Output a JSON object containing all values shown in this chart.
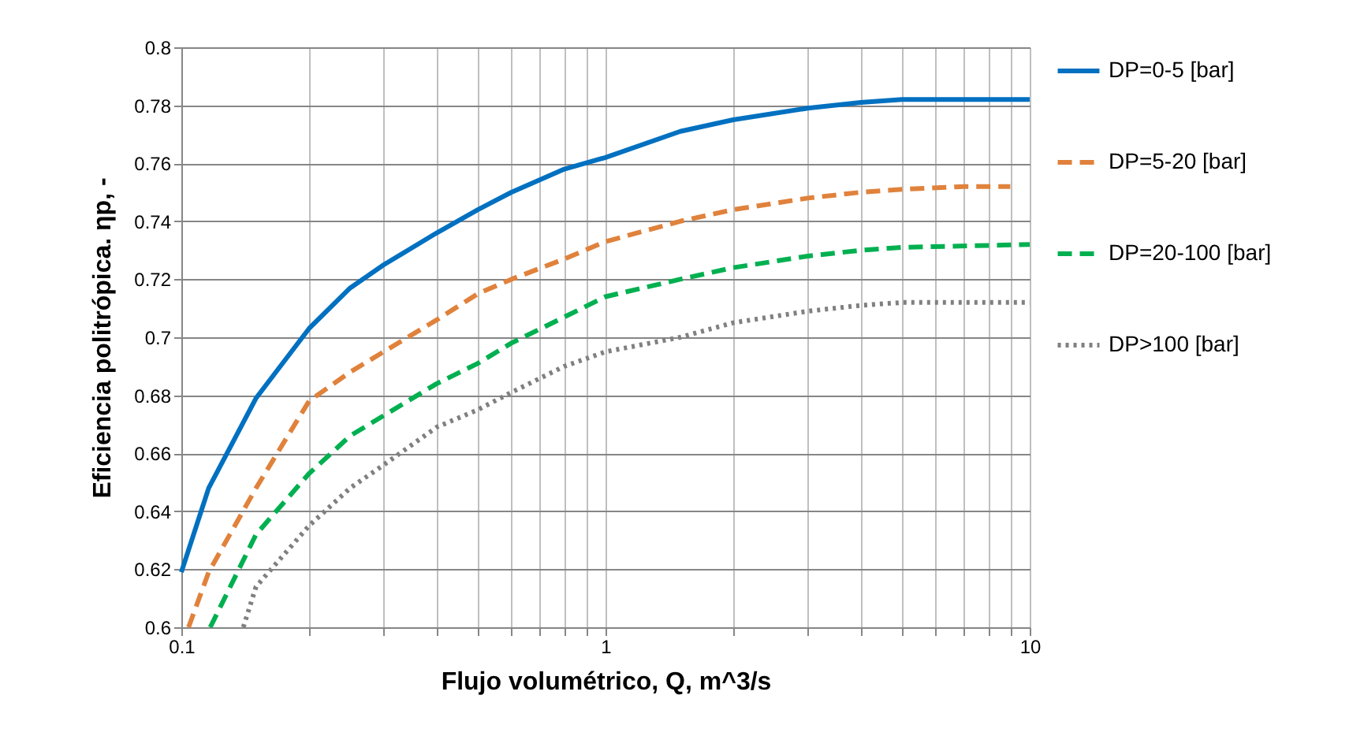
{
  "chart_data": {
    "type": "line",
    "xlabel": "Flujo volumétrico, Q, m^3/s",
    "ylabel": "Eficiencia politrópica. ηp, -",
    "log": "x",
    "grid": true,
    "legend": "right",
    "marker": "none",
    "xlim": [
      0.1,
      10
    ],
    "xticks": [
      0.1,
      {
        "value": 0.2,
        "label": null
      },
      {
        "value": 0.3,
        "label": null
      },
      {
        "value": 0.4,
        "label": null
      },
      {
        "value": 0.5,
        "label": null
      },
      {
        "value": 0.6,
        "label": null
      },
      {
        "value": 0.7,
        "label": null
      },
      {
        "value": 0.8,
        "label": null
      },
      {
        "value": 0.9,
        "label": null
      },
      1,
      {
        "value": 2,
        "label": null
      },
      {
        "value": 3,
        "label": null
      },
      {
        "value": 4,
        "label": null
      },
      {
        "value": 5,
        "label": null
      },
      {
        "value": 6,
        "label": null
      },
      {
        "value": 7,
        "label": null
      },
      {
        "value": 8,
        "label": null
      },
      {
        "value": 9,
        "label": null
      },
      10
    ],
    "ylim": [
      0.6,
      0.8
    ],
    "yticks": [
      0.6,
      0.62,
      0.64,
      0.66,
      0.68,
      0.7,
      0.72,
      0.74,
      0.76,
      0.78,
      0.8
    ],
    "series": [
      {
        "name": "DP=0-5 [bar]",
        "color": "#0070c0",
        "line_style": "solid",
        "x": [
          0.1,
          0.116,
          0.15,
          0.2,
          0.25,
          0.3,
          0.4,
          0.5,
          0.6,
          0.8,
          1,
          1.5,
          2,
          3,
          4,
          5,
          7,
          10
        ],
        "values": [
          0.619,
          0.648,
          0.679,
          0.703,
          0.717,
          0.725,
          0.736,
          0.744,
          0.75,
          0.758,
          0.762,
          0.771,
          0.775,
          0.779,
          0.781,
          0.782,
          0.782,
          0.782
        ]
      },
      {
        "name": "DP=5-20 [bar]",
        "color": "#e0823c",
        "line_style": "dashed",
        "x": [
          0.104,
          0.116,
          0.15,
          0.2,
          0.25,
          0.3,
          0.4,
          0.5,
          0.6,
          0.8,
          1,
          1.5,
          2,
          3,
          4,
          5,
          7,
          9
        ],
        "values": [
          0.6,
          0.619,
          0.648,
          0.678,
          0.688,
          0.695,
          0.706,
          0.715,
          0.72,
          0.727,
          0.733,
          0.74,
          0.744,
          0.748,
          0.75,
          0.751,
          0.752,
          0.752
        ]
      },
      {
        "name": "DP=20-100 [bar]",
        "color": "#00b050",
        "line_style": "dashed",
        "x": [
          0.117,
          0.15,
          0.2,
          0.25,
          0.3,
          0.4,
          0.5,
          0.6,
          0.8,
          1,
          1.5,
          2,
          3,
          4,
          5,
          10
        ],
        "values": [
          0.6,
          0.632,
          0.653,
          0.666,
          0.673,
          0.684,
          0.691,
          0.698,
          0.707,
          0.714,
          0.72,
          0.724,
          0.728,
          0.73,
          0.731,
          0.732
        ]
      },
      {
        "name": "DP>100 [bar]",
        "color": "#808080",
        "line_style": "dotted",
        "x": [
          0.14,
          0.15,
          0.2,
          0.25,
          0.3,
          0.4,
          0.5,
          0.6,
          0.8,
          1,
          1.5,
          2,
          3,
          4,
          5,
          10
        ],
        "values": [
          0.6,
          0.614,
          0.635,
          0.648,
          0.656,
          0.669,
          0.675,
          0.681,
          0.69,
          0.695,
          0.7,
          0.705,
          0.709,
          0.711,
          0.712,
          0.712
        ]
      }
    ]
  }
}
